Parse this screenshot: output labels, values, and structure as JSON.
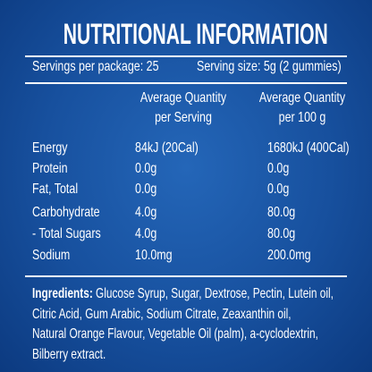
{
  "title": "NUTRITIONAL INFORMATION",
  "servings": {
    "per_package": "Servings per package: 25",
    "serving_size": "Serving size: 5g (2 gummies)"
  },
  "table": {
    "header": [
      [
        "Average Quantity",
        "per Serving"
      ],
      [
        "Average Quantity",
        "per 100 g"
      ]
    ],
    "rows": [
      [
        "Energy",
        "84kJ (20Cal)",
        "1680kJ (400Cal)"
      ],
      [
        "Protein",
        "0.0g",
        "0.0g"
      ],
      [
        "Fat, Total",
        "0.0g",
        "0.0g"
      ],
      [
        "Carbohydrate",
        "4.0g",
        "80.0g"
      ],
      [
        "- Total Sugars",
        "4.0g",
        "80.0g"
      ],
      [
        "Sodium",
        "10.0mg",
        "200.0mg"
      ]
    ]
  },
  "ingredients": {
    "label": "Ingredients:",
    "lines": [
      "Glucose Syrup, Sugar, Dextrose, Pectin, Lutein oil,",
      "Citric Acid, Gum Arabic, Sodium Citrate, Zeaxanthin oil,",
      "Natural Orange Flavour, Vegetable Oil (palm), a-cyclodextrin,",
      "Bilberry extract."
    ]
  }
}
